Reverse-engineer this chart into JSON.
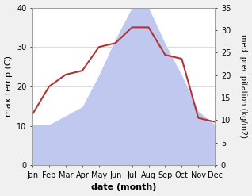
{
  "months": [
    "Jan",
    "Feb",
    "Mar",
    "Apr",
    "May",
    "Jun",
    "Jul",
    "Aug",
    "Sep",
    "Oct",
    "Nov",
    "Dec"
  ],
  "temperature": [
    13,
    20,
    23,
    24,
    30,
    31,
    35,
    35,
    28,
    27,
    12,
    11
  ],
  "precipitation": [
    9,
    9,
    11,
    13,
    20,
    28,
    35,
    35,
    27,
    20,
    12,
    9
  ],
  "temp_color": "#b03535",
  "precip_fill_color": "#c0c8f0",
  "ylim_left": [
    0,
    40
  ],
  "ylim_right": [
    0,
    35
  ],
  "yticks_left": [
    0,
    10,
    20,
    30,
    40
  ],
  "yticks_right": [
    0,
    5,
    10,
    15,
    20,
    25,
    30,
    35
  ],
  "ylabel_left": "max temp (C)",
  "ylabel_right": "med. precipitation (kg/m2)",
  "xlabel": "date (month)",
  "bg_color": "#f0f0f0",
  "plot_bg_color": "#ffffff",
  "title_fontsize": 8,
  "axis_fontsize": 8,
  "tick_fontsize": 7
}
